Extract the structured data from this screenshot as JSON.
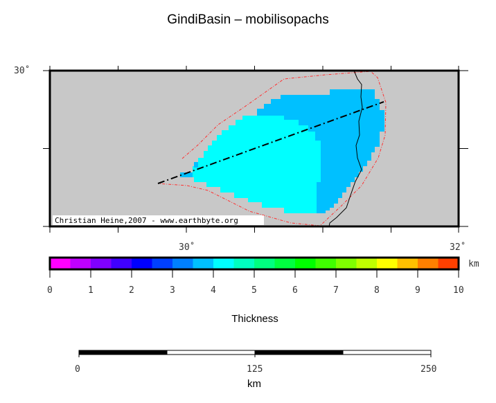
{
  "title": "GindiBasin – mobilisopachs",
  "map": {
    "lat_label": "30˚",
    "lon_labels": [
      "30˚",
      "32˚"
    ],
    "credit": "Christian Heine,2007 - www.earthbyte.org",
    "colors": {
      "background": "#c8c8c8",
      "outline": "#ff3030",
      "thick_3_5": "#00c0ff",
      "thick_4_0": "#00ffff"
    }
  },
  "colorbar": {
    "unit": "km",
    "ticks": [
      "0",
      "1",
      "2",
      "3",
      "4",
      "5",
      "6",
      "7",
      "8",
      "9",
      "10"
    ],
    "colors": [
      "#ff00ff",
      "#c000ff",
      "#8000ff",
      "#4000ff",
      "#0000ff",
      "#0040ff",
      "#0080ff",
      "#00c0ff",
      "#00ffff",
      "#00ffc0",
      "#00ff80",
      "#00ff40",
      "#00ff00",
      "#40ff00",
      "#80ff00",
      "#c0ff00",
      "#ffff00",
      "#ffc000",
      "#ff8000",
      "#ff4000"
    ],
    "label": "Thickness"
  },
  "scalebar": {
    "ticks": [
      "0",
      "125",
      "250"
    ],
    "unit": "km"
  }
}
